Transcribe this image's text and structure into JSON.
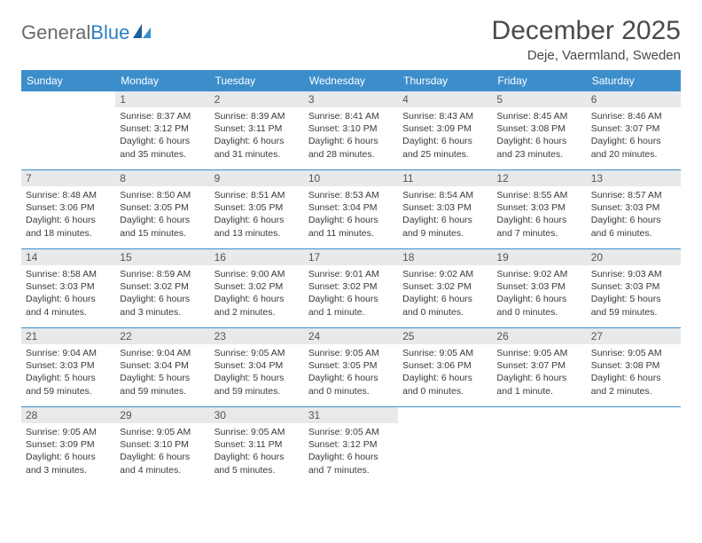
{
  "brand": {
    "part1": "General",
    "part2": "Blue"
  },
  "title": "December 2025",
  "subtitle": "Deje, Vaermland, Sweden",
  "colors": {
    "header_bg": "#3c8ecb",
    "daynum_bg": "#e7e9ea",
    "rule": "#3c8ecb",
    "logo_gray": "#6a6a6a",
    "logo_blue": "#2d7fc3"
  },
  "weekdays": [
    "Sunday",
    "Monday",
    "Tuesday",
    "Wednesday",
    "Thursday",
    "Friday",
    "Saturday"
  ],
  "weeks": [
    [
      null,
      {
        "n": "1",
        "sr": "Sunrise: 8:37 AM",
        "ss": "Sunset: 3:12 PM",
        "d1": "Daylight: 6 hours",
        "d2": "and 35 minutes."
      },
      {
        "n": "2",
        "sr": "Sunrise: 8:39 AM",
        "ss": "Sunset: 3:11 PM",
        "d1": "Daylight: 6 hours",
        "d2": "and 31 minutes."
      },
      {
        "n": "3",
        "sr": "Sunrise: 8:41 AM",
        "ss": "Sunset: 3:10 PM",
        "d1": "Daylight: 6 hours",
        "d2": "and 28 minutes."
      },
      {
        "n": "4",
        "sr": "Sunrise: 8:43 AM",
        "ss": "Sunset: 3:09 PM",
        "d1": "Daylight: 6 hours",
        "d2": "and 25 minutes."
      },
      {
        "n": "5",
        "sr": "Sunrise: 8:45 AM",
        "ss": "Sunset: 3:08 PM",
        "d1": "Daylight: 6 hours",
        "d2": "and 23 minutes."
      },
      {
        "n": "6",
        "sr": "Sunrise: 8:46 AM",
        "ss": "Sunset: 3:07 PM",
        "d1": "Daylight: 6 hours",
        "d2": "and 20 minutes."
      }
    ],
    [
      {
        "n": "7",
        "sr": "Sunrise: 8:48 AM",
        "ss": "Sunset: 3:06 PM",
        "d1": "Daylight: 6 hours",
        "d2": "and 18 minutes."
      },
      {
        "n": "8",
        "sr": "Sunrise: 8:50 AM",
        "ss": "Sunset: 3:05 PM",
        "d1": "Daylight: 6 hours",
        "d2": "and 15 minutes."
      },
      {
        "n": "9",
        "sr": "Sunrise: 8:51 AM",
        "ss": "Sunset: 3:05 PM",
        "d1": "Daylight: 6 hours",
        "d2": "and 13 minutes."
      },
      {
        "n": "10",
        "sr": "Sunrise: 8:53 AM",
        "ss": "Sunset: 3:04 PM",
        "d1": "Daylight: 6 hours",
        "d2": "and 11 minutes."
      },
      {
        "n": "11",
        "sr": "Sunrise: 8:54 AM",
        "ss": "Sunset: 3:03 PM",
        "d1": "Daylight: 6 hours",
        "d2": "and 9 minutes."
      },
      {
        "n": "12",
        "sr": "Sunrise: 8:55 AM",
        "ss": "Sunset: 3:03 PM",
        "d1": "Daylight: 6 hours",
        "d2": "and 7 minutes."
      },
      {
        "n": "13",
        "sr": "Sunrise: 8:57 AM",
        "ss": "Sunset: 3:03 PM",
        "d1": "Daylight: 6 hours",
        "d2": "and 6 minutes."
      }
    ],
    [
      {
        "n": "14",
        "sr": "Sunrise: 8:58 AM",
        "ss": "Sunset: 3:03 PM",
        "d1": "Daylight: 6 hours",
        "d2": "and 4 minutes."
      },
      {
        "n": "15",
        "sr": "Sunrise: 8:59 AM",
        "ss": "Sunset: 3:02 PM",
        "d1": "Daylight: 6 hours",
        "d2": "and 3 minutes."
      },
      {
        "n": "16",
        "sr": "Sunrise: 9:00 AM",
        "ss": "Sunset: 3:02 PM",
        "d1": "Daylight: 6 hours",
        "d2": "and 2 minutes."
      },
      {
        "n": "17",
        "sr": "Sunrise: 9:01 AM",
        "ss": "Sunset: 3:02 PM",
        "d1": "Daylight: 6 hours",
        "d2": "and 1 minute."
      },
      {
        "n": "18",
        "sr": "Sunrise: 9:02 AM",
        "ss": "Sunset: 3:02 PM",
        "d1": "Daylight: 6 hours",
        "d2": "and 0 minutes."
      },
      {
        "n": "19",
        "sr": "Sunrise: 9:02 AM",
        "ss": "Sunset: 3:03 PM",
        "d1": "Daylight: 6 hours",
        "d2": "and 0 minutes."
      },
      {
        "n": "20",
        "sr": "Sunrise: 9:03 AM",
        "ss": "Sunset: 3:03 PM",
        "d1": "Daylight: 5 hours",
        "d2": "and 59 minutes."
      }
    ],
    [
      {
        "n": "21",
        "sr": "Sunrise: 9:04 AM",
        "ss": "Sunset: 3:03 PM",
        "d1": "Daylight: 5 hours",
        "d2": "and 59 minutes."
      },
      {
        "n": "22",
        "sr": "Sunrise: 9:04 AM",
        "ss": "Sunset: 3:04 PM",
        "d1": "Daylight: 5 hours",
        "d2": "and 59 minutes."
      },
      {
        "n": "23",
        "sr": "Sunrise: 9:05 AM",
        "ss": "Sunset: 3:04 PM",
        "d1": "Daylight: 5 hours",
        "d2": "and 59 minutes."
      },
      {
        "n": "24",
        "sr": "Sunrise: 9:05 AM",
        "ss": "Sunset: 3:05 PM",
        "d1": "Daylight: 6 hours",
        "d2": "and 0 minutes."
      },
      {
        "n": "25",
        "sr": "Sunrise: 9:05 AM",
        "ss": "Sunset: 3:06 PM",
        "d1": "Daylight: 6 hours",
        "d2": "and 0 minutes."
      },
      {
        "n": "26",
        "sr": "Sunrise: 9:05 AM",
        "ss": "Sunset: 3:07 PM",
        "d1": "Daylight: 6 hours",
        "d2": "and 1 minute."
      },
      {
        "n": "27",
        "sr": "Sunrise: 9:05 AM",
        "ss": "Sunset: 3:08 PM",
        "d1": "Daylight: 6 hours",
        "d2": "and 2 minutes."
      }
    ],
    [
      {
        "n": "28",
        "sr": "Sunrise: 9:05 AM",
        "ss": "Sunset: 3:09 PM",
        "d1": "Daylight: 6 hours",
        "d2": "and 3 minutes."
      },
      {
        "n": "29",
        "sr": "Sunrise: 9:05 AM",
        "ss": "Sunset: 3:10 PM",
        "d1": "Daylight: 6 hours",
        "d2": "and 4 minutes."
      },
      {
        "n": "30",
        "sr": "Sunrise: 9:05 AM",
        "ss": "Sunset: 3:11 PM",
        "d1": "Daylight: 6 hours",
        "d2": "and 5 minutes."
      },
      {
        "n": "31",
        "sr": "Sunrise: 9:05 AM",
        "ss": "Sunset: 3:12 PM",
        "d1": "Daylight: 6 hours",
        "d2": "and 7 minutes."
      },
      null,
      null,
      null
    ]
  ]
}
